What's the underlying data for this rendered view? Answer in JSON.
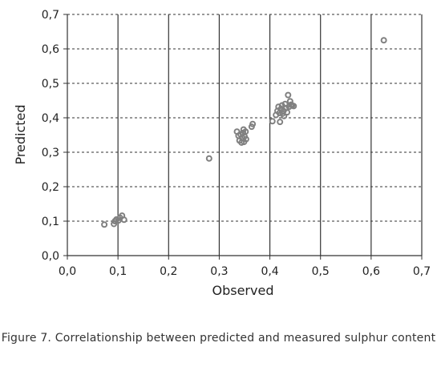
{
  "chart_data": {
    "type": "scatter",
    "xlabel": "Observed",
    "ylabel": "Predicted",
    "xlim": [
      0,
      0.7
    ],
    "ylim": [
      0,
      0.7
    ],
    "x_tick_labels": [
      "0,0",
      "0,1",
      "0,2",
      "0,3",
      "0,4",
      "0,5",
      "0,6",
      "0,7"
    ],
    "y_tick_labels": [
      "0,0",
      "0,1",
      "0,2",
      "0,3",
      "0,4",
      "0,5",
      "0,6",
      "0,7"
    ],
    "vertical_gridlines": "solid",
    "horizontal_gridlines": "dashed",
    "marker": "open-circle",
    "marker_color": "#808080",
    "series": [
      {
        "points": [
          [
            0.073,
            0.09
          ],
          [
            0.092,
            0.092
          ],
          [
            0.094,
            0.1
          ],
          [
            0.097,
            0.105
          ],
          [
            0.101,
            0.102
          ],
          [
            0.104,
            0.11
          ],
          [
            0.108,
            0.116
          ],
          [
            0.112,
            0.104
          ],
          [
            0.28,
            0.282
          ],
          [
            0.335,
            0.36
          ],
          [
            0.338,
            0.348
          ],
          [
            0.34,
            0.334
          ],
          [
            0.342,
            0.352
          ],
          [
            0.344,
            0.328
          ],
          [
            0.345,
            0.342
          ],
          [
            0.347,
            0.356
          ],
          [
            0.348,
            0.366
          ],
          [
            0.349,
            0.33
          ],
          [
            0.35,
            0.346
          ],
          [
            0.352,
            0.36
          ],
          [
            0.353,
            0.338
          ],
          [
            0.364,
            0.374
          ],
          [
            0.366,
            0.382
          ],
          [
            0.405,
            0.39
          ],
          [
            0.412,
            0.408
          ],
          [
            0.415,
            0.42
          ],
          [
            0.417,
            0.432
          ],
          [
            0.419,
            0.414
          ],
          [
            0.42,
            0.388
          ],
          [
            0.422,
            0.426
          ],
          [
            0.424,
            0.436
          ],
          [
            0.425,
            0.412
          ],
          [
            0.427,
            0.42
          ],
          [
            0.428,
            0.405
          ],
          [
            0.43,
            0.44
          ],
          [
            0.432,
            0.428
          ],
          [
            0.434,
            0.416
          ],
          [
            0.436,
            0.466
          ],
          [
            0.438,
            0.432
          ],
          [
            0.44,
            0.448
          ],
          [
            0.442,
            0.438
          ],
          [
            0.444,
            0.436
          ],
          [
            0.447,
            0.434
          ],
          [
            0.625,
            0.625
          ]
        ]
      }
    ]
  },
  "caption": "Figure 7. Correlationship between predicted and measured sulphur content"
}
